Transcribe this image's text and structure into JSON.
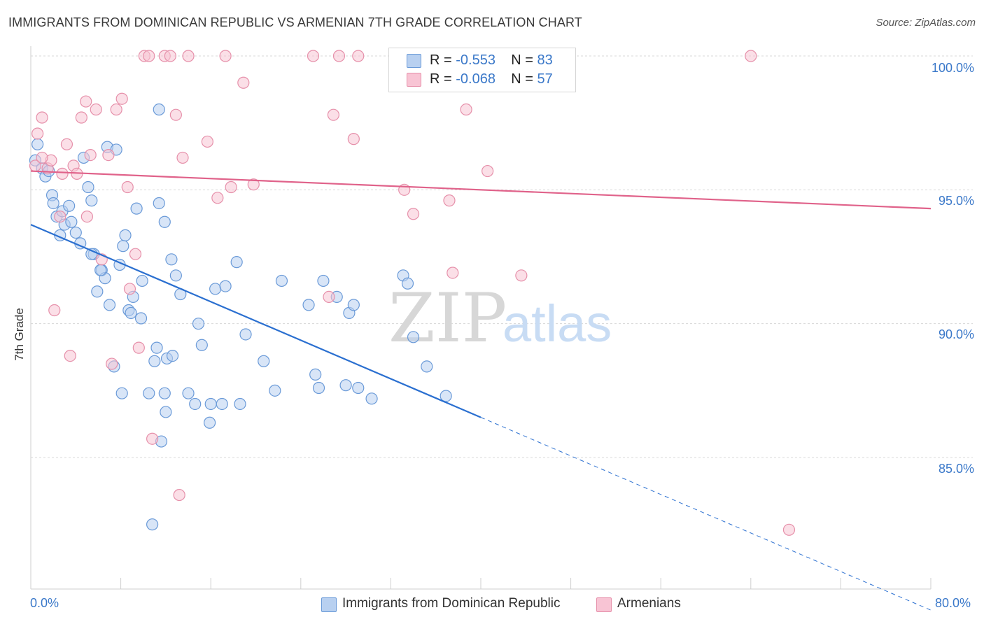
{
  "title": "IMMIGRANTS FROM DOMINICAN REPUBLIC VS ARMENIAN 7TH GRADE CORRELATION CHART",
  "source": "Source: ZipAtlas.com",
  "watermark": {
    "zip": "ZIP",
    "atlas": "atlas"
  },
  "colors": {
    "blue_fill": "#b8d0f0",
    "blue_stroke": "#6a9ad8",
    "blue_line": "#2a6fd0",
    "pink_fill": "#f8c4d4",
    "pink_stroke": "#e690aa",
    "pink_line": "#e0628a",
    "axis_value": "#3a78c9",
    "grid": "#d8d8d8"
  },
  "legend": {
    "rows": [
      {
        "r_label": "R = ",
        "r_value": "-0.553",
        "n_label": "N = ",
        "n_value": "83",
        "color": "blue"
      },
      {
        "r_label": "R = ",
        "r_value": "-0.068",
        "n_label": "N = ",
        "n_value": "57",
        "color": "pink"
      }
    ]
  },
  "chart_data": {
    "type": "scatter",
    "title": "IMMIGRANTS FROM DOMINICAN REPUBLIC VS ARMENIAN 7TH GRADE CORRELATION CHART",
    "xlabel": "",
    "ylabel": "7th Grade",
    "xlim": [
      0,
      80
    ],
    "ylim": [
      80,
      100.5
    ],
    "x_tick_labels": [
      "0.0%",
      "80.0%"
    ],
    "y_ticks": [
      85,
      90,
      95,
      100
    ],
    "y_tick_labels": [
      "85.0%",
      "90.0%",
      "95.0%",
      "100.0%"
    ],
    "grid": "horizontal dashed",
    "legend_position": "bottom-center",
    "series": [
      {
        "name": "Immigrants from Dominican Republic",
        "color": "blue",
        "R": -0.553,
        "N": 83,
        "trend": {
          "x0": 0,
          "y0": 93.7,
          "x1": 40,
          "y1": 86.5,
          "dashed_to_x": 80,
          "dashed_to_y": 79.3
        },
        "points": [
          [
            0.4,
            96.1
          ],
          [
            0.6,
            96.7
          ],
          [
            1.0,
            95.8
          ],
          [
            1.3,
            95.5
          ],
          [
            1.6,
            95.7
          ],
          [
            1.9,
            94.8
          ],
          [
            2.0,
            94.5
          ],
          [
            2.3,
            94.0
          ],
          [
            2.6,
            93.3
          ],
          [
            2.8,
            94.2
          ],
          [
            3.0,
            93.7
          ],
          [
            3.4,
            94.4
          ],
          [
            3.6,
            93.8
          ],
          [
            4.0,
            93.4
          ],
          [
            4.4,
            93.0
          ],
          [
            4.7,
            96.2
          ],
          [
            5.1,
            95.1
          ],
          [
            5.4,
            94.6
          ],
          [
            5.6,
            92.6
          ],
          [
            5.9,
            91.2
          ],
          [
            6.3,
            92.0
          ],
          [
            5.4,
            92.6
          ],
          [
            6.6,
            91.7
          ],
          [
            7.0,
            90.7
          ],
          [
            6.8,
            96.6
          ],
          [
            7.6,
            96.5
          ],
          [
            7.9,
            92.2
          ],
          [
            8.2,
            92.9
          ],
          [
            8.4,
            93.3
          ],
          [
            8.7,
            90.5
          ],
          [
            9.1,
            91.0
          ],
          [
            9.8,
            90.2
          ],
          [
            9.9,
            91.6
          ],
          [
            9.4,
            94.3
          ],
          [
            11.4,
            94.5
          ],
          [
            11.9,
            93.8
          ],
          [
            12.5,
            92.4
          ],
          [
            12.9,
            91.8
          ],
          [
            13.3,
            91.1
          ],
          [
            11.0,
            88.6
          ],
          [
            10.5,
            87.4
          ],
          [
            11.6,
            85.6
          ],
          [
            12.1,
            88.7
          ],
          [
            12.6,
            88.8
          ],
          [
            14.0,
            87.4
          ],
          [
            14.6,
            87.0
          ],
          [
            14.9,
            90.0
          ],
          [
            15.2,
            89.2
          ],
          [
            16.0,
            87.0
          ],
          [
            16.4,
            91.3
          ],
          [
            17.3,
            91.4
          ],
          [
            18.3,
            92.3
          ],
          [
            19.1,
            89.6
          ],
          [
            20.7,
            88.6
          ],
          [
            21.7,
            87.5
          ],
          [
            22.3,
            91.6
          ],
          [
            24.7,
            90.7
          ],
          [
            25.3,
            88.1
          ],
          [
            25.6,
            87.6
          ],
          [
            26.0,
            91.6
          ],
          [
            27.2,
            91.0
          ],
          [
            28.3,
            90.4
          ],
          [
            28.7,
            90.7
          ],
          [
            28.0,
            87.7
          ],
          [
            29.1,
            87.6
          ],
          [
            30.3,
            87.2
          ],
          [
            33.1,
            91.8
          ],
          [
            33.5,
            91.5
          ],
          [
            34.0,
            89.5
          ],
          [
            35.2,
            88.4
          ],
          [
            36.9,
            87.3
          ],
          [
            11.4,
            98.0
          ],
          [
            8.9,
            90.4
          ],
          [
            11.2,
            89.1
          ],
          [
            6.2,
            92.0
          ],
          [
            15.9,
            86.3
          ],
          [
            12.0,
            86.7
          ],
          [
            11.9,
            87.4
          ],
          [
            17.0,
            87.0
          ],
          [
            18.6,
            87.0
          ],
          [
            10.8,
            82.5
          ],
          [
            8.1,
            87.4
          ],
          [
            7.4,
            88.4
          ]
        ]
      },
      {
        "name": "Armenians",
        "color": "pink",
        "R": -0.068,
        "N": 57,
        "trend": {
          "x0": 0,
          "y0": 95.7,
          "x1": 80,
          "y1": 94.3
        },
        "points": [
          [
            0.4,
            95.9
          ],
          [
            0.6,
            97.1
          ],
          [
            1.0,
            97.7
          ],
          [
            1.5,
            95.8
          ],
          [
            1.8,
            96.1
          ],
          [
            2.1,
            90.5
          ],
          [
            2.6,
            94.0
          ],
          [
            2.8,
            95.6
          ],
          [
            3.2,
            96.7
          ],
          [
            3.5,
            88.8
          ],
          [
            3.8,
            95.9
          ],
          [
            4.1,
            95.6
          ],
          [
            4.5,
            97.7
          ],
          [
            4.9,
            98.3
          ],
          [
            5.3,
            96.3
          ],
          [
            5.8,
            98.0
          ],
          [
            6.3,
            92.4
          ],
          [
            6.9,
            96.3
          ],
          [
            7.2,
            88.5
          ],
          [
            7.6,
            98.0
          ],
          [
            8.1,
            98.4
          ],
          [
            8.6,
            95.1
          ],
          [
            8.8,
            91.3
          ],
          [
            9.3,
            92.6
          ],
          [
            9.6,
            89.1
          ],
          [
            10.1,
            100.0
          ],
          [
            10.5,
            100.0
          ],
          [
            10.8,
            85.7
          ],
          [
            11.9,
            100.0
          ],
          [
            12.4,
            100.0
          ],
          [
            12.9,
            97.8
          ],
          [
            13.2,
            83.6
          ],
          [
            13.5,
            96.2
          ],
          [
            14.0,
            100.0
          ],
          [
            15.7,
            96.8
          ],
          [
            16.6,
            94.7
          ],
          [
            17.3,
            100.0
          ],
          [
            17.8,
            95.1
          ],
          [
            18.9,
            99.0
          ],
          [
            19.8,
            95.2
          ],
          [
            25.1,
            100.0
          ],
          [
            26.5,
            91.0
          ],
          [
            26.9,
            97.8
          ],
          [
            27.4,
            100.0
          ],
          [
            28.7,
            96.9
          ],
          [
            29.1,
            100.0
          ],
          [
            33.2,
            95.0
          ],
          [
            34.0,
            94.1
          ],
          [
            37.2,
            94.6
          ],
          [
            37.5,
            91.9
          ],
          [
            38.7,
            98.0
          ],
          [
            40.6,
            95.7
          ],
          [
            43.6,
            91.8
          ],
          [
            64.0,
            100.0
          ],
          [
            67.4,
            82.3
          ],
          [
            5.0,
            94.0
          ],
          [
            1.0,
            96.2
          ]
        ]
      }
    ]
  },
  "bottom_legend": [
    {
      "label": "Immigrants from Dominican Republic",
      "color": "blue"
    },
    {
      "label": "Armenians",
      "color": "pink"
    }
  ]
}
